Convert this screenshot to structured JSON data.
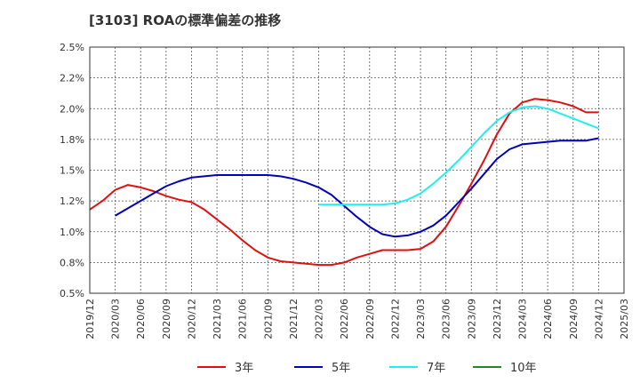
{
  "chart_data": {
    "type": "line",
    "title": "[3103]  ROAの標準偏差の推移",
    "xlabel": "",
    "ylabel": "",
    "grid": true,
    "legend_position": "bottom",
    "x_ticks": [
      "2019/12",
      "2020/03",
      "2020/06",
      "2020/09",
      "2020/12",
      "2021/03",
      "2021/06",
      "2021/09",
      "2021/12",
      "2022/03",
      "2022/06",
      "2022/09",
      "2022/12",
      "2023/03",
      "2023/06",
      "2023/09",
      "2023/12",
      "2024/03",
      "2024/06",
      "2024/09",
      "2024/12",
      "2025/03"
    ],
    "y_ticks": [
      "0.5%",
      "0.8%",
      "1.0%",
      "1.2%",
      "1.5%",
      "1.8%",
      "2.0%",
      "2.2%",
      "2.5%"
    ],
    "ylim": [
      0.5,
      2.5
    ],
    "series": [
      {
        "name": "3年",
        "color": "#dd1111",
        "values": [
          1.18,
          1.25,
          1.34,
          1.38,
          1.36,
          1.33,
          1.29,
          1.26,
          1.24,
          1.18,
          1.1,
          1.02,
          0.93,
          0.85,
          0.79,
          0.76,
          0.75,
          0.74,
          0.73,
          0.73,
          0.75,
          0.79,
          0.82,
          0.85,
          0.85,
          0.85,
          0.86,
          0.92,
          1.04,
          1.21,
          1.39,
          1.58,
          1.79,
          1.96,
          2.05,
          2.08,
          2.07,
          2.05,
          2.02,
          1.97,
          1.97
        ]
      },
      {
        "name": "5年",
        "color": "#0000bb",
        "values": [
          null,
          null,
          1.13,
          1.19,
          1.25,
          1.31,
          1.37,
          1.41,
          1.44,
          1.45,
          1.46,
          1.46,
          1.46,
          1.46,
          1.46,
          1.45,
          1.43,
          1.4,
          1.36,
          1.3,
          1.21,
          1.12,
          1.04,
          0.98,
          0.96,
          0.97,
          1.0,
          1.05,
          1.13,
          1.24,
          1.35,
          1.47,
          1.59,
          1.67,
          1.71,
          1.72,
          1.73,
          1.74,
          1.74,
          1.74,
          1.76
        ]
      },
      {
        "name": "7年",
        "color": "#22eeee",
        "values": [
          null,
          null,
          null,
          null,
          null,
          null,
          null,
          null,
          null,
          null,
          null,
          null,
          null,
          null,
          null,
          null,
          null,
          null,
          1.22,
          1.22,
          1.22,
          1.22,
          1.22,
          1.22,
          1.23,
          1.26,
          1.31,
          1.39,
          1.48,
          1.58,
          1.69,
          1.8,
          1.9,
          1.97,
          2.01,
          2.02,
          2.0,
          1.96,
          1.92,
          1.88,
          1.84
        ]
      },
      {
        "name": "10年",
        "color": "#228822",
        "values": []
      }
    ]
  }
}
